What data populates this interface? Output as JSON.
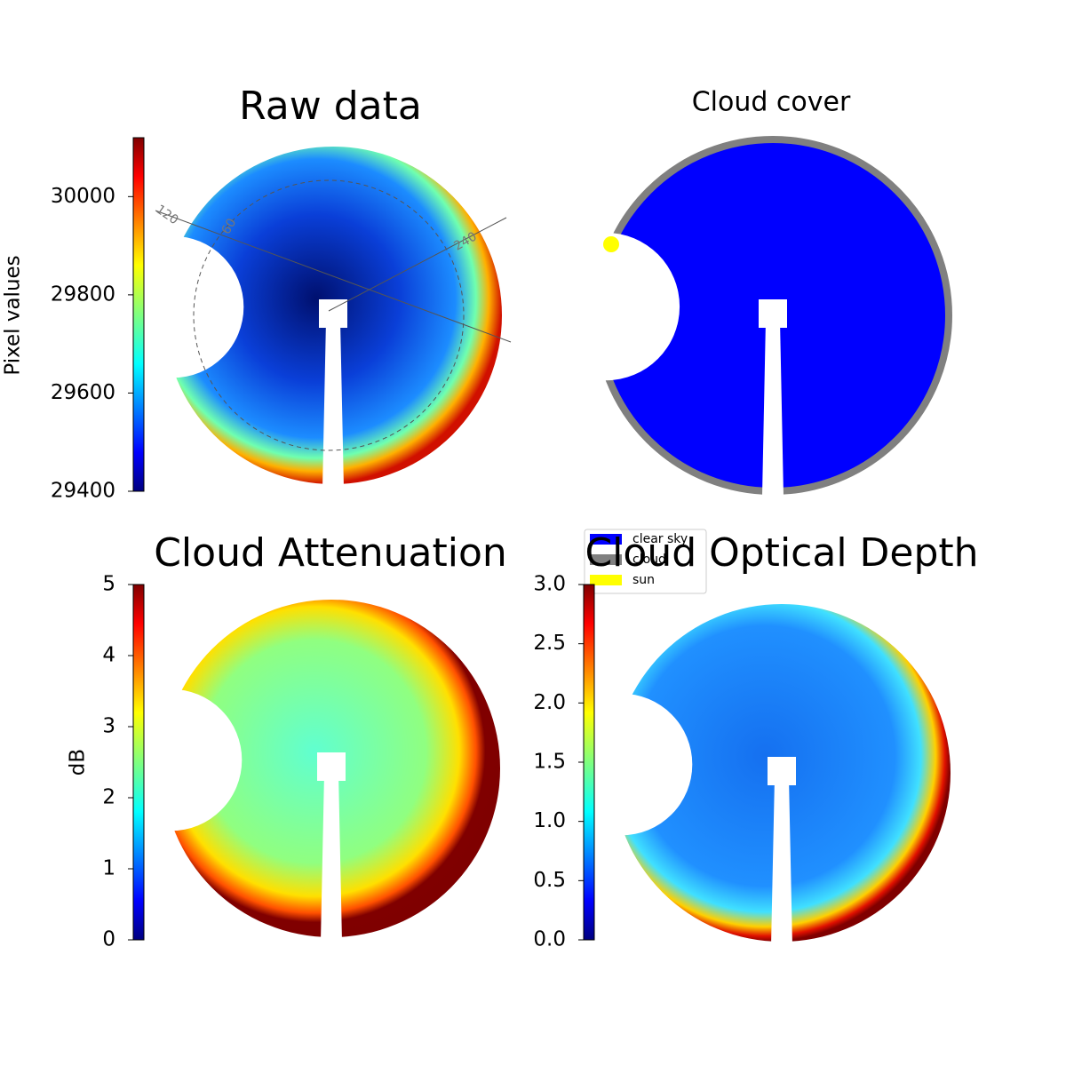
{
  "chart_data": [
    {
      "type": "heatmap",
      "title": "Raw data",
      "colorbar_label": "Pixel values",
      "colormap": "jet",
      "clim": [
        29400,
        30120
      ],
      "cticks": [
        29400,
        29600,
        29800,
        30000
      ],
      "annotations": [
        "120",
        "60",
        "240"
      ]
    },
    {
      "type": "categorical",
      "title": "Cloud cover",
      "legend": [
        {
          "name": "clear sky",
          "color": "#0000ff"
        },
        {
          "name": "cloud",
          "color": "#808080"
        },
        {
          "name": "sun",
          "color": "#ffff00"
        }
      ]
    },
    {
      "type": "heatmap",
      "title": "Cloud Attenuation",
      "colorbar_label": "dB",
      "colormap": "jet",
      "clim": [
        0,
        5
      ],
      "cticks": [
        0,
        1,
        2,
        3,
        4,
        5
      ]
    },
    {
      "type": "heatmap",
      "title": "Cloud Optical Depth",
      "colormap": "jet",
      "clim": [
        0,
        3
      ],
      "cticks": [
        {
          "value": 0,
          "label": "0.0"
        },
        {
          "value": 0.5,
          "label": "0.5"
        },
        {
          "value": 1,
          "label": "1.0"
        },
        {
          "value": 1.5,
          "label": "1.5"
        },
        {
          "value": 2,
          "label": "2.0"
        },
        {
          "value": 2.5,
          "label": "2.5"
        },
        {
          "value": 3,
          "label": "3.0"
        }
      ]
    }
  ]
}
